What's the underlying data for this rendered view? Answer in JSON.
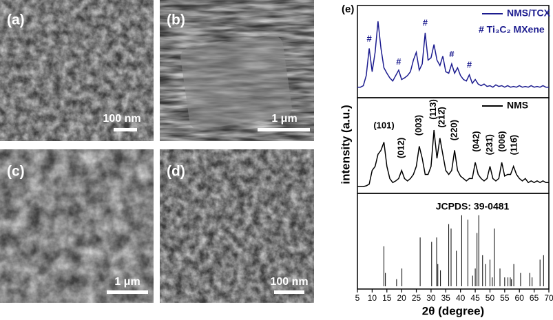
{
  "images": [
    {
      "label": "(a)",
      "scale": "100 nm"
    },
    {
      "label": "(b)",
      "scale": "1 μm"
    },
    {
      "label": "(c)",
      "scale": "1 μm"
    },
    {
      "label": "(d)",
      "scale": "100 nm"
    }
  ],
  "chart_data": [
    {
      "type": "line",
      "panel_label": "(e)",
      "xlim": [
        5,
        70
      ],
      "ylim": [
        0,
        110
      ],
      "x": [
        5,
        6,
        7,
        8,
        9,
        10,
        11,
        12,
        13,
        14,
        15,
        16,
        17,
        18,
        19,
        20,
        21,
        22,
        23,
        24,
        25,
        26,
        27,
        28,
        29,
        30,
        31,
        32,
        33,
        34,
        35,
        36,
        37,
        38,
        39,
        40,
        41,
        42,
        43,
        44,
        45,
        46,
        47,
        48,
        49,
        50,
        51,
        52,
        53,
        54,
        55,
        56,
        57,
        58,
        59,
        60,
        61,
        62,
        63,
        64,
        65,
        66,
        67,
        68,
        69,
        70
      ],
      "series": [
        {
          "name": "NMS/TCX",
          "color": "#1c1c8f",
          "values": [
            10,
            10,
            12,
            25,
            60,
            30,
            55,
            95,
            60,
            35,
            28,
            22,
            18,
            25,
            32,
            20,
            22,
            25,
            30,
            45,
            55,
            32,
            40,
            80,
            45,
            48,
            65,
            45,
            38,
            50,
            30,
            28,
            40,
            28,
            35,
            25,
            20,
            18,
            26,
            15,
            20,
            14,
            12,
            14,
            11,
            12,
            10,
            13,
            11,
            12,
            10,
            12,
            10,
            11,
            10,
            12,
            10,
            11,
            10,
            12,
            10,
            11,
            10,
            12,
            10,
            10
          ]
        }
      ],
      "legend_note": "# Ti₃C₂ MXene",
      "annotations": [
        {
          "text": "#",
          "x": 9,
          "y": 72
        },
        {
          "text": "#",
          "x": 19,
          "y": 42
        },
        {
          "text": "#",
          "x": 28,
          "y": 92
        },
        {
          "text": "#",
          "x": 37,
          "y": 52
        },
        {
          "text": "#",
          "x": 43,
          "y": 38
        }
      ]
    },
    {
      "type": "line",
      "ylabel": "intensity (a.u.)",
      "xlim": [
        5,
        70
      ],
      "ylim": [
        0,
        110
      ],
      "x": [
        5,
        6,
        7,
        8,
        9,
        10,
        11,
        12,
        13,
        14,
        15,
        16,
        17,
        18,
        19,
        20,
        21,
        22,
        23,
        24,
        25,
        26,
        27,
        28,
        29,
        30,
        31,
        32,
        33,
        34,
        35,
        36,
        37,
        38,
        39,
        40,
        41,
        42,
        43,
        44,
        45,
        46,
        47,
        48,
        49,
        50,
        51,
        52,
        53,
        54,
        55,
        56,
        57,
        58,
        59,
        60,
        61,
        62,
        63,
        64,
        65,
        66,
        67,
        68,
        69,
        70
      ],
      "series": [
        {
          "name": "NMS",
          "color": "#000000",
          "values": [
            5,
            5,
            5,
            6,
            8,
            25,
            30,
            45,
            50,
            60,
            30,
            15,
            10,
            12,
            15,
            25,
            15,
            12,
            15,
            20,
            30,
            55,
            40,
            20,
            20,
            30,
            75,
            40,
            65,
            45,
            25,
            20,
            25,
            50,
            25,
            18,
            15,
            12,
            15,
            15,
            35,
            20,
            15,
            12,
            15,
            30,
            15,
            12,
            15,
            35,
            18,
            20,
            20,
            30,
            20,
            15,
            12,
            15,
            10,
            12,
            10,
            12,
            10,
            12,
            10,
            10
          ]
        }
      ],
      "annotations": [
        {
          "text": "(101)",
          "x": 14,
          "y": 80,
          "rotated": false
        },
        {
          "text": "(012)",
          "x": 20,
          "y": 40,
          "rotated": true
        },
        {
          "text": "(003)",
          "x": 26,
          "y": 68,
          "rotated": true
        },
        {
          "text": "(113)",
          "x": 30.8,
          "y": 88,
          "rotated": true
        },
        {
          "text": "(212̄)",
          "x": 33.8,
          "y": 78,
          "rotated": true
        },
        {
          "text": "(220)",
          "x": 38,
          "y": 62,
          "rotated": true
        },
        {
          "text": "(042)",
          "x": 45.5,
          "y": 48,
          "rotated": true
        },
        {
          "text": "(231̄)",
          "x": 50,
          "y": 44,
          "rotated": true
        },
        {
          "text": "(006)",
          "x": 54.2,
          "y": 48,
          "rotated": true
        },
        {
          "text": "(116̄)",
          "x": 58.3,
          "y": 44,
          "rotated": true
        }
      ]
    },
    {
      "type": "stem",
      "xlabel": "2θ (degree)",
      "xlim": [
        5,
        70
      ],
      "ylim": [
        0,
        100
      ],
      "color": "#000000",
      "xticks": [
        5,
        10,
        15,
        20,
        25,
        30,
        35,
        40,
        45,
        50,
        55,
        60,
        65,
        70
      ],
      "annotation": "JCPDS: 39-0481",
      "x": [
        14.0,
        14.5,
        18.3,
        20.1,
        26.3,
        30.2,
        31.9,
        32.3,
        33.2,
        36.0,
        36.8,
        38.6,
        40.4,
        42.5,
        44.1,
        45.0,
        45.6,
        46.2,
        47.5,
        48.5,
        50.0,
        50.8,
        51.5,
        53.4,
        55.0,
        56.1,
        56.9,
        57.3,
        58.1,
        60.4,
        63.5,
        64.3,
        67.0,
        68.2
      ],
      "values": [
        45,
        15,
        8,
        20,
        55,
        50,
        55,
        25,
        18,
        70,
        65,
        40,
        80,
        75,
        12,
        20,
        60,
        80,
        35,
        25,
        30,
        10,
        65,
        20,
        10,
        10,
        10,
        8,
        25,
        15,
        15,
        10,
        30,
        35
      ]
    }
  ]
}
